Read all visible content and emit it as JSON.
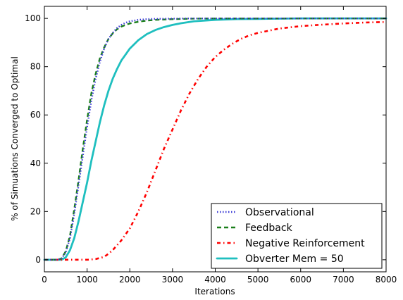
{
  "chart_data": {
    "type": "line",
    "title": "",
    "xlabel": "Iterations",
    "ylabel": "% of Simuations Converged to Optimal",
    "xlim": [
      0,
      8000
    ],
    "ylim": [
      -5,
      105
    ],
    "xticks": [
      0,
      1000,
      2000,
      3000,
      4000,
      5000,
      6000,
      7000,
      8000
    ],
    "yticks": [
      0,
      20,
      40,
      60,
      80,
      100
    ],
    "xtick_labels": [
      "0",
      "1000",
      "2000",
      "3000",
      "4000",
      "5000",
      "6000",
      "7000",
      "8000"
    ],
    "ytick_labels": [
      "0",
      "20",
      "40",
      "60",
      "80",
      "100"
    ],
    "grid": false,
    "legend_position": "bottom-right",
    "series": [
      {
        "name": "Observational",
        "color": "#3b3bd6",
        "style": "dotted",
        "x": [
          0,
          300,
          400,
          500,
          600,
          700,
          800,
          900,
          1000,
          1100,
          1200,
          1300,
          1400,
          1500,
          1600,
          1700,
          1800,
          1900,
          2000,
          2200,
          2400,
          2600,
          3000,
          3500,
          4000,
          5000,
          6000,
          7000,
          8000
        ],
        "y": [
          0,
          0,
          0.5,
          3,
          9,
          19,
          31,
          43,
          55,
          66,
          75,
          82,
          87.5,
          91.5,
          94,
          96,
          97.3,
          98.2,
          98.8,
          99.4,
          99.7,
          99.8,
          99.9,
          100,
          100,
          100,
          100,
          100,
          100
        ]
      },
      {
        "name": "Feedback",
        "color": "#1a7f1a",
        "style": "dashed",
        "x": [
          0,
          300,
          400,
          500,
          600,
          700,
          800,
          900,
          1000,
          1100,
          1200,
          1300,
          1400,
          1500,
          1600,
          1700,
          1800,
          1900,
          2000,
          2200,
          2400,
          2600,
          3000,
          3500,
          4000,
          5000,
          6000,
          7000,
          8000
        ],
        "y": [
          0,
          0,
          0.5,
          3.5,
          10,
          21,
          33,
          46,
          58,
          69,
          77,
          83.5,
          88,
          91.5,
          93.8,
          95.5,
          96.6,
          97.3,
          97.9,
          98.6,
          99.1,
          99.4,
          99.7,
          99.9,
          100,
          100,
          100,
          100,
          100
        ]
      },
      {
        "name": "Negative Reinforcement",
        "color": "#ff0000",
        "style": "dashdot",
        "x": [
          0,
          500,
          800,
          1000,
          1200,
          1400,
          1500,
          1600,
          1800,
          2000,
          2200,
          2400,
          2600,
          2800,
          3000,
          3200,
          3400,
          3600,
          3800,
          4000,
          4200,
          4400,
          4600,
          4800,
          5000,
          5500,
          6000,
          6500,
          7000,
          7500,
          8000
        ],
        "y": [
          0,
          0,
          0,
          0,
          0.3,
          1.2,
          2.5,
          4,
          8,
          13,
          20,
          28,
          37,
          46,
          54,
          62,
          69,
          75,
          80,
          84,
          87,
          89.5,
          91.5,
          93,
          94,
          95.8,
          96.8,
          97.4,
          97.9,
          98.3,
          98.5
        ]
      },
      {
        "name": "Obverter Mem = 50",
        "color": "#1fbfbf",
        "style": "solid",
        "x": [
          0,
          400,
          500,
          600,
          700,
          800,
          900,
          1000,
          1100,
          1200,
          1300,
          1400,
          1500,
          1600,
          1700,
          1800,
          1900,
          2000,
          2200,
          2400,
          2600,
          2800,
          3000,
          3200,
          3500,
          4000,
          4500,
          5000,
          6000,
          7000,
          8000
        ],
        "y": [
          0,
          0,
          1,
          4,
          9,
          16,
          24,
          32,
          41,
          49,
          57,
          64,
          70,
          75,
          79,
          82.5,
          85,
          87.5,
          91,
          93.5,
          95.2,
          96.4,
          97.3,
          98,
          98.8,
          99.4,
          99.7,
          99.8,
          100,
          100,
          100
        ]
      }
    ]
  }
}
